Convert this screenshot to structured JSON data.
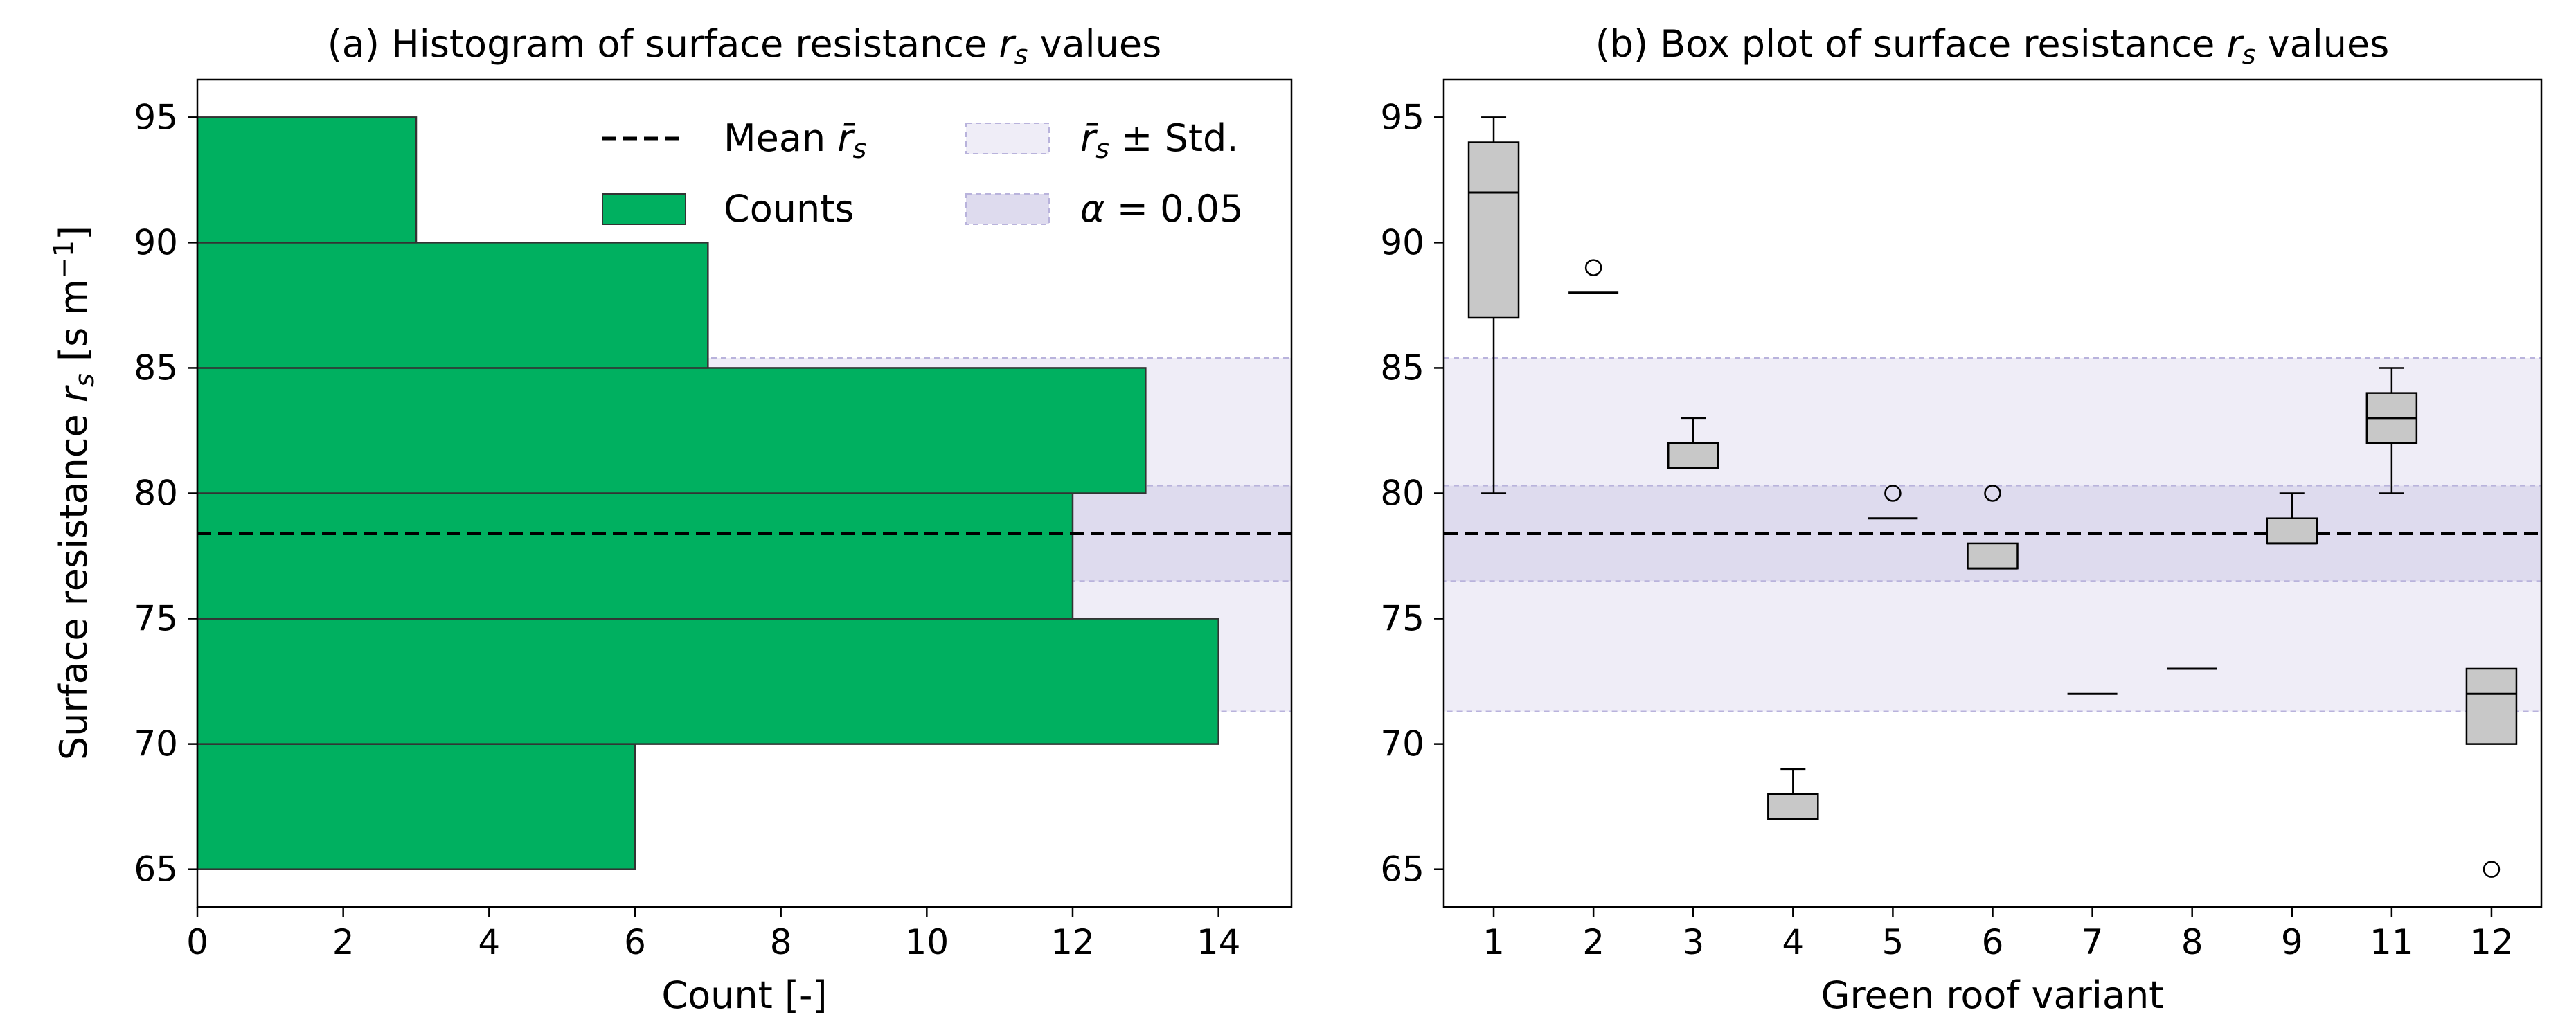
{
  "chart_data": [
    {
      "type": "bar",
      "orientation": "horizontal",
      "title": "(a) Histogram of surface resistance ",
      "title_symbol": "r",
      "title_symbol_sub": "s",
      "title_suffix": " values",
      "xlabel": "Count [-]",
      "ylabel": "Surface resistance ",
      "ylabel_symbol": "r",
      "ylabel_symbol_sub": "s",
      "ylabel_unit": " [s m",
      "ylabel_unit_sup": "−1",
      "ylabel_unit_end": "]",
      "xlim": [
        0,
        15
      ],
      "ylim": [
        63.5,
        96.5
      ],
      "xticks": [
        0,
        2,
        4,
        6,
        8,
        10,
        12,
        14
      ],
      "yticks": [
        65,
        70,
        75,
        80,
        85,
        90,
        95
      ],
      "bins": [
        {
          "from": 65,
          "to": 70,
          "count": 6
        },
        {
          "from": 70,
          "to": 75,
          "count": 14
        },
        {
          "from": 75,
          "to": 80,
          "count": 12
        },
        {
          "from": 80,
          "to": 85,
          "count": 13
        },
        {
          "from": 85,
          "to": 90,
          "count": 7
        },
        {
          "from": 90,
          "to": 95,
          "count": 3
        }
      ],
      "bar_color": "#00b060",
      "mean": 78.4,
      "std_band": [
        71.3,
        85.4
      ],
      "ci_band": [
        76.5,
        80.3
      ],
      "legend": {
        "mean_label": "Mean ",
        "mean_symbol": "r̄",
        "mean_symbol_sub": "s",
        "counts_label": "Counts",
        "std_symbol": "r̄",
        "std_symbol_sub": "s",
        "std_label": " ± Std.",
        "alpha_symbol": "α",
        "alpha_label": " = 0.05"
      }
    },
    {
      "type": "box",
      "title": "(b) Box plot of surface resistance ",
      "title_symbol": "r",
      "title_symbol_sub": "s",
      "title_suffix": " values",
      "xlabel": "Green roof variant",
      "ylim": [
        63.5,
        96.5
      ],
      "yticks": [
        65,
        70,
        75,
        80,
        85,
        90,
        95
      ],
      "categories": [
        "1",
        "2",
        "3",
        "4",
        "5",
        "6",
        "7",
        "8",
        "9",
        "11",
        "12"
      ],
      "boxes": [
        {
          "whislo": 80,
          "q1": 87,
          "med": 92,
          "q3": 94,
          "whishi": 95,
          "fliers": []
        },
        {
          "whislo": 88,
          "q1": 88,
          "med": 88,
          "q3": 88,
          "whishi": 88,
          "fliers": [
            89
          ]
        },
        {
          "whislo": 81,
          "q1": 81,
          "med": 81,
          "q3": 82,
          "whishi": 83,
          "fliers": []
        },
        {
          "whislo": 67,
          "q1": 67,
          "med": 67,
          "q3": 68,
          "whishi": 69,
          "fliers": []
        },
        {
          "whislo": 79,
          "q1": 79,
          "med": 79,
          "q3": 79,
          "whishi": 79,
          "fliers": [
            80
          ]
        },
        {
          "whislo": 77,
          "q1": 77,
          "med": 77,
          "q3": 78,
          "whishi": 78,
          "fliers": [
            80
          ]
        },
        {
          "whislo": 72,
          "q1": 72,
          "med": 72,
          "q3": 72,
          "whishi": 72,
          "fliers": []
        },
        {
          "whislo": 73,
          "q1": 73,
          "med": 73,
          "q3": 73,
          "whishi": 73,
          "fliers": []
        },
        {
          "whislo": 78,
          "q1": 78,
          "med": 78,
          "q3": 79,
          "whishi": 80,
          "fliers": []
        },
        {
          "whislo": 80,
          "q1": 82,
          "med": 83,
          "q3": 84,
          "whishi": 85,
          "fliers": []
        },
        {
          "whislo": 70,
          "q1": 70,
          "med": 72,
          "q3": 73,
          "whishi": 73,
          "fliers": [
            65
          ]
        }
      ],
      "box_color": "#c8c8c8",
      "mean": 78.4,
      "std_band": [
        71.3,
        85.4
      ],
      "ci_band": [
        76.5,
        80.3
      ]
    }
  ],
  "colors": {
    "std_band": "#efedf7",
    "ci_band": "#dedbee",
    "band_edge": "#b9b3dc",
    "mean_line": "#000000"
  }
}
